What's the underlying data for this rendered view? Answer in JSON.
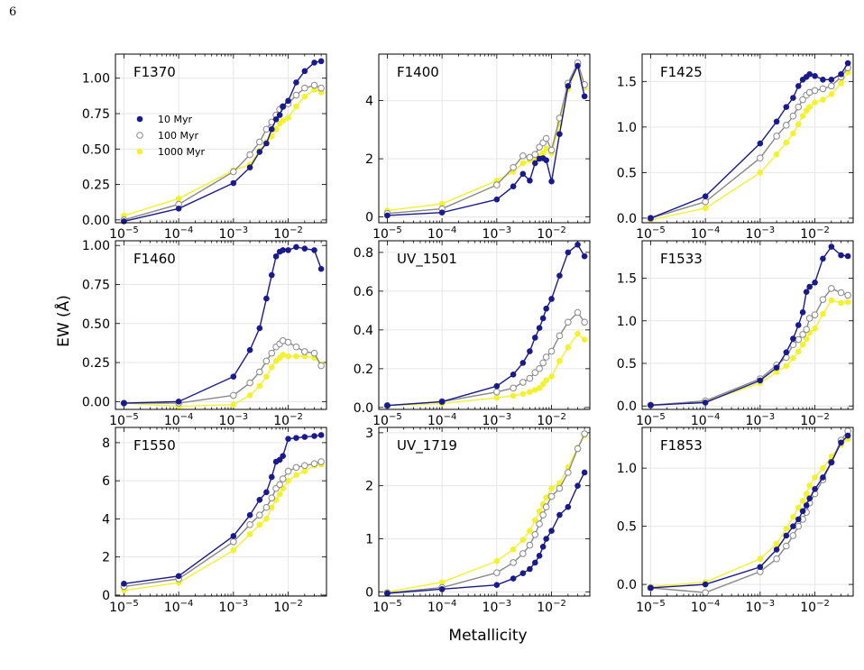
{
  "page_number": "6",
  "figure": {
    "ylabel": "EW (Å)",
    "xlabel": "Metallicity",
    "x_ticks": [
      {
        "value": 1e-05,
        "base": "10",
        "exp": "−5"
      },
      {
        "value": 0.0001,
        "base": "10",
        "exp": "−4"
      },
      {
        "value": 0.001,
        "base": "10",
        "exp": "−3"
      },
      {
        "value": 0.01,
        "base": "10",
        "exp": "−2"
      }
    ],
    "legend": [
      {
        "label": "10 Myr",
        "color": "#1a1a8c",
        "marker": "filled"
      },
      {
        "label": "100 Myr",
        "color": "#888888",
        "marker": "open"
      },
      {
        "label": "1000 Myr",
        "color": "#f2f22e",
        "marker": "filled"
      }
    ]
  },
  "chart_data": [
    {
      "type": "line",
      "title": "F1370",
      "xscale": "log",
      "xlim": [
        7e-06,
        0.05
      ],
      "ylim": [
        -0.02,
        1.17
      ],
      "yticks": [
        0.0,
        0.25,
        0.5,
        0.75,
        1.0
      ],
      "ytick_labels": [
        "0.00",
        "0.25",
        "0.50",
        "0.75",
        "1.00"
      ],
      "x": [
        1e-05,
        0.0001,
        0.001,
        0.002,
        0.003,
        0.004,
        0.005,
        0.006,
        0.007,
        0.008,
        0.01,
        0.014,
        0.02,
        0.03,
        0.04
      ],
      "series": [
        {
          "name": "10 Myr",
          "values": [
            -0.01,
            0.08,
            0.26,
            0.37,
            0.48,
            0.54,
            0.64,
            0.71,
            0.74,
            0.8,
            0.84,
            0.97,
            1.05,
            1.11,
            1.12
          ]
        },
        {
          "name": "100 Myr",
          "values": [
            0.0,
            0.11,
            0.34,
            0.46,
            0.55,
            0.64,
            0.69,
            0.74,
            0.78,
            0.8,
            0.82,
            0.88,
            0.93,
            0.95,
            0.93
          ]
        },
        {
          "name": "1000 Myr",
          "values": [
            0.03,
            0.15,
            0.35,
            0.39,
            0.49,
            0.55,
            0.59,
            0.64,
            0.68,
            0.7,
            0.72,
            0.8,
            0.87,
            0.92,
            0.9
          ]
        }
      ]
    },
    {
      "type": "line",
      "title": "F1400",
      "xscale": "log",
      "xlim": [
        7e-06,
        0.05
      ],
      "ylim": [
        -0.2,
        5.6
      ],
      "yticks": [
        0,
        2,
        4
      ],
      "ytick_labels": [
        "0",
        "2",
        "4"
      ],
      "x": [
        1e-05,
        0.0001,
        0.001,
        0.002,
        0.003,
        0.004,
        0.005,
        0.006,
        0.007,
        0.008,
        0.01,
        0.014,
        0.02,
        0.03,
        0.04
      ],
      "series": [
        {
          "name": "10 Myr",
          "values": [
            0.05,
            0.15,
            0.6,
            1.05,
            1.48,
            1.25,
            1.85,
            2.0,
            2.02,
            1.95,
            1.22,
            2.85,
            4.5,
            5.2,
            4.15
          ]
        },
        {
          "name": "100 Myr",
          "values": [
            0.12,
            0.28,
            1.1,
            1.7,
            2.1,
            2.05,
            2.15,
            2.4,
            2.55,
            2.7,
            2.3,
            3.4,
            4.6,
            5.3,
            4.55
          ]
        },
        {
          "name": "1000 Myr",
          "values": [
            0.22,
            0.45,
            1.25,
            1.55,
            1.85,
            1.95,
            2.0,
            2.1,
            2.2,
            2.35,
            2.2,
            3.2,
            4.4,
            5.2,
            4.45
          ]
        }
      ]
    },
    {
      "type": "line",
      "title": "F1425",
      "xscale": "log",
      "xlim": [
        7e-06,
        0.05
      ],
      "ylim": [
        -0.05,
        1.8
      ],
      "yticks": [
        0.0,
        0.5,
        1.0,
        1.5
      ],
      "ytick_labels": [
        "0.0",
        "0.5",
        "1.0",
        "1.5"
      ],
      "x": [
        1e-05,
        0.0001,
        0.001,
        0.002,
        0.003,
        0.004,
        0.005,
        0.006,
        0.007,
        0.008,
        0.01,
        0.014,
        0.02,
        0.03,
        0.04
      ],
      "series": [
        {
          "name": "10 Myr",
          "values": [
            0.0,
            0.24,
            0.82,
            1.06,
            1.22,
            1.32,
            1.45,
            1.52,
            1.55,
            1.58,
            1.56,
            1.52,
            1.52,
            1.58,
            1.7
          ]
        },
        {
          "name": "100 Myr",
          "values": [
            0.0,
            0.18,
            0.66,
            0.9,
            1.02,
            1.12,
            1.22,
            1.3,
            1.35,
            1.38,
            1.4,
            1.42,
            1.45,
            1.55,
            1.65
          ]
        },
        {
          "name": "1000 Myr",
          "values": [
            -0.02,
            0.11,
            0.5,
            0.7,
            0.83,
            0.93,
            1.03,
            1.12,
            1.18,
            1.22,
            1.27,
            1.3,
            1.36,
            1.48,
            1.6
          ]
        }
      ]
    },
    {
      "type": "line",
      "title": "F1460",
      "xscale": "log",
      "xlim": [
        7e-06,
        0.05
      ],
      "ylim": [
        -0.05,
        1.03
      ],
      "yticks": [
        0.0,
        0.25,
        0.5,
        0.75,
        1.0
      ],
      "ytick_labels": [
        "0.00",
        "0.25",
        "0.50",
        "0.75",
        "1.00"
      ],
      "x": [
        1e-05,
        0.0001,
        0.001,
        0.002,
        0.003,
        0.004,
        0.005,
        0.006,
        0.007,
        0.008,
        0.01,
        0.014,
        0.02,
        0.03,
        0.04
      ],
      "series": [
        {
          "name": "10 Myr",
          "values": [
            -0.01,
            0.0,
            0.16,
            0.33,
            0.47,
            0.66,
            0.81,
            0.93,
            0.96,
            0.97,
            0.97,
            0.99,
            0.98,
            0.97,
            0.85
          ]
        },
        {
          "name": "100 Myr",
          "values": [
            -0.01,
            -0.01,
            0.04,
            0.12,
            0.19,
            0.26,
            0.31,
            0.35,
            0.37,
            0.39,
            0.38,
            0.35,
            0.32,
            0.31,
            0.23
          ]
        },
        {
          "name": "1000 Myr",
          "values": [
            -0.01,
            -0.03,
            -0.02,
            0.04,
            0.1,
            0.16,
            0.22,
            0.26,
            0.28,
            0.3,
            0.29,
            0.29,
            0.29,
            0.28,
            0.24
          ]
        }
      ]
    },
    {
      "type": "line",
      "title": "UV_1501",
      "xscale": "log",
      "xlim": [
        7e-06,
        0.05
      ],
      "ylim": [
        -0.01,
        0.86
      ],
      "yticks": [
        0.0,
        0.2,
        0.4,
        0.6,
        0.8
      ],
      "ytick_labels": [
        "0.0",
        "0.2",
        "0.4",
        "0.6",
        "0.8"
      ],
      "x": [
        1e-05,
        0.0001,
        0.001,
        0.002,
        0.003,
        0.004,
        0.005,
        0.006,
        0.007,
        0.008,
        0.01,
        0.014,
        0.02,
        0.03,
        0.04
      ],
      "series": [
        {
          "name": "10 Myr",
          "values": [
            0.01,
            0.03,
            0.11,
            0.17,
            0.23,
            0.29,
            0.36,
            0.41,
            0.46,
            0.51,
            0.56,
            0.68,
            0.8,
            0.84,
            0.78
          ]
        },
        {
          "name": "100 Myr",
          "values": [
            0.01,
            0.03,
            0.08,
            0.1,
            0.13,
            0.15,
            0.18,
            0.2,
            0.23,
            0.26,
            0.29,
            0.37,
            0.44,
            0.49,
            0.44
          ]
        },
        {
          "name": "1000 Myr",
          "values": [
            0.01,
            0.02,
            0.05,
            0.06,
            0.07,
            0.08,
            0.09,
            0.1,
            0.12,
            0.14,
            0.16,
            0.24,
            0.31,
            0.38,
            0.35
          ]
        }
      ]
    },
    {
      "type": "line",
      "title": "F1533",
      "xscale": "log",
      "xlim": [
        7e-06,
        0.05
      ],
      "ylim": [
        -0.04,
        1.94
      ],
      "yticks": [
        0.0,
        0.5,
        1.0,
        1.5
      ],
      "ytick_labels": [
        "0.0",
        "0.5",
        "1.0",
        "1.5"
      ],
      "x": [
        1e-05,
        0.0001,
        0.001,
        0.002,
        0.003,
        0.004,
        0.005,
        0.006,
        0.007,
        0.008,
        0.01,
        0.014,
        0.02,
        0.03,
        0.04
      ],
      "series": [
        {
          "name": "10 Myr",
          "values": [
            0.01,
            0.04,
            0.3,
            0.45,
            0.63,
            0.79,
            0.95,
            1.1,
            1.34,
            1.4,
            1.45,
            1.73,
            1.87,
            1.77,
            1.76
          ]
        },
        {
          "name": "100 Myr",
          "values": [
            0.01,
            0.06,
            0.32,
            0.48,
            0.57,
            0.72,
            0.78,
            0.84,
            0.9,
            1.03,
            1.07,
            1.25,
            1.38,
            1.33,
            1.3
          ]
        },
        {
          "name": "1000 Myr",
          "values": [
            0.01,
            0.05,
            0.27,
            0.4,
            0.47,
            0.56,
            0.64,
            0.72,
            0.79,
            0.86,
            0.91,
            1.08,
            1.24,
            1.21,
            1.22
          ]
        }
      ]
    },
    {
      "type": "line",
      "title": "F1550",
      "xscale": "log",
      "xlim": [
        7e-06,
        0.05
      ],
      "ylim": [
        -0.05,
        8.8
      ],
      "yticks": [
        0,
        2,
        4,
        6,
        8
      ],
      "ytick_labels": [
        "0",
        "2",
        "4",
        "6",
        "8"
      ],
      "x": [
        1e-05,
        0.0001,
        0.001,
        0.002,
        0.003,
        0.004,
        0.005,
        0.006,
        0.007,
        0.008,
        0.01,
        0.014,
        0.02,
        0.03,
        0.04
      ],
      "series": [
        {
          "name": "10 Myr",
          "values": [
            0.6,
            1.0,
            3.1,
            4.2,
            5.0,
            5.4,
            6.2,
            7.0,
            7.1,
            7.3,
            8.2,
            8.25,
            8.3,
            8.35,
            8.4
          ]
        },
        {
          "name": "100 Myr",
          "values": [
            0.45,
            0.85,
            2.8,
            3.7,
            4.2,
            4.6,
            5.1,
            5.6,
            5.8,
            6.1,
            6.5,
            6.7,
            6.8,
            6.9,
            7.0
          ]
        },
        {
          "name": "1000 Myr",
          "values": [
            0.25,
            0.65,
            2.35,
            3.2,
            3.7,
            4.0,
            4.6,
            5.0,
            5.3,
            5.6,
            6.0,
            6.3,
            6.5,
            6.8,
            6.85
          ]
        }
      ]
    },
    {
      "type": "line",
      "title": "UV_1719",
      "xscale": "log",
      "xlim": [
        7e-06,
        0.05
      ],
      "ylim": [
        -0.08,
        3.1
      ],
      "yticks": [
        0,
        1,
        2,
        3
      ],
      "ytick_labels": [
        "0",
        "1",
        "2",
        "3"
      ],
      "x": [
        1e-05,
        0.0001,
        0.001,
        0.002,
        0.003,
        0.004,
        0.005,
        0.006,
        0.007,
        0.008,
        0.01,
        0.014,
        0.02,
        0.03,
        0.04
      ],
      "series": [
        {
          "name": "10 Myr",
          "values": [
            -0.03,
            0.05,
            0.13,
            0.25,
            0.35,
            0.43,
            0.55,
            0.68,
            0.85,
            1.0,
            1.15,
            1.45,
            1.6,
            2.0,
            2.25
          ]
        },
        {
          "name": "100 Myr",
          "values": [
            -0.02,
            0.08,
            0.36,
            0.55,
            0.72,
            0.88,
            1.08,
            1.28,
            1.45,
            1.6,
            1.8,
            1.95,
            2.25,
            2.7,
            2.98
          ]
        },
        {
          "name": "1000 Myr",
          "values": [
            0.0,
            0.18,
            0.58,
            0.8,
            0.98,
            1.15,
            1.35,
            1.52,
            1.65,
            1.78,
            1.95,
            2.05,
            2.35,
            2.72,
            2.95
          ]
        }
      ]
    },
    {
      "type": "line",
      "title": "F1853",
      "xscale": "log",
      "xlim": [
        7e-06,
        0.05
      ],
      "ylim": [
        -0.1,
        1.35
      ],
      "yticks": [
        0.0,
        0.5,
        1.0
      ],
      "ytick_labels": [
        "0.0",
        "0.5",
        "1.0"
      ],
      "x": [
        1e-05,
        0.0001,
        0.001,
        0.002,
        0.003,
        0.004,
        0.005,
        0.006,
        0.007,
        0.008,
        0.01,
        0.014,
        0.02,
        0.03,
        0.04
      ],
      "series": [
        {
          "name": "10 Myr",
          "values": [
            -0.03,
            0.0,
            0.15,
            0.3,
            0.42,
            0.5,
            0.56,
            0.63,
            0.68,
            0.74,
            0.82,
            0.92,
            1.05,
            1.22,
            1.28
          ]
        },
        {
          "name": "100 Myr",
          "values": [
            -0.03,
            -0.07,
            0.11,
            0.22,
            0.33,
            0.42,
            0.5,
            0.56,
            0.62,
            0.7,
            0.78,
            0.9,
            1.05,
            1.24,
            1.32
          ]
        },
        {
          "name": "1000 Myr",
          "values": [
            -0.02,
            0.02,
            0.22,
            0.35,
            0.48,
            0.58,
            0.66,
            0.72,
            0.78,
            0.85,
            0.92,
            1.0,
            1.1,
            1.2,
            1.25
          ]
        }
      ]
    }
  ]
}
